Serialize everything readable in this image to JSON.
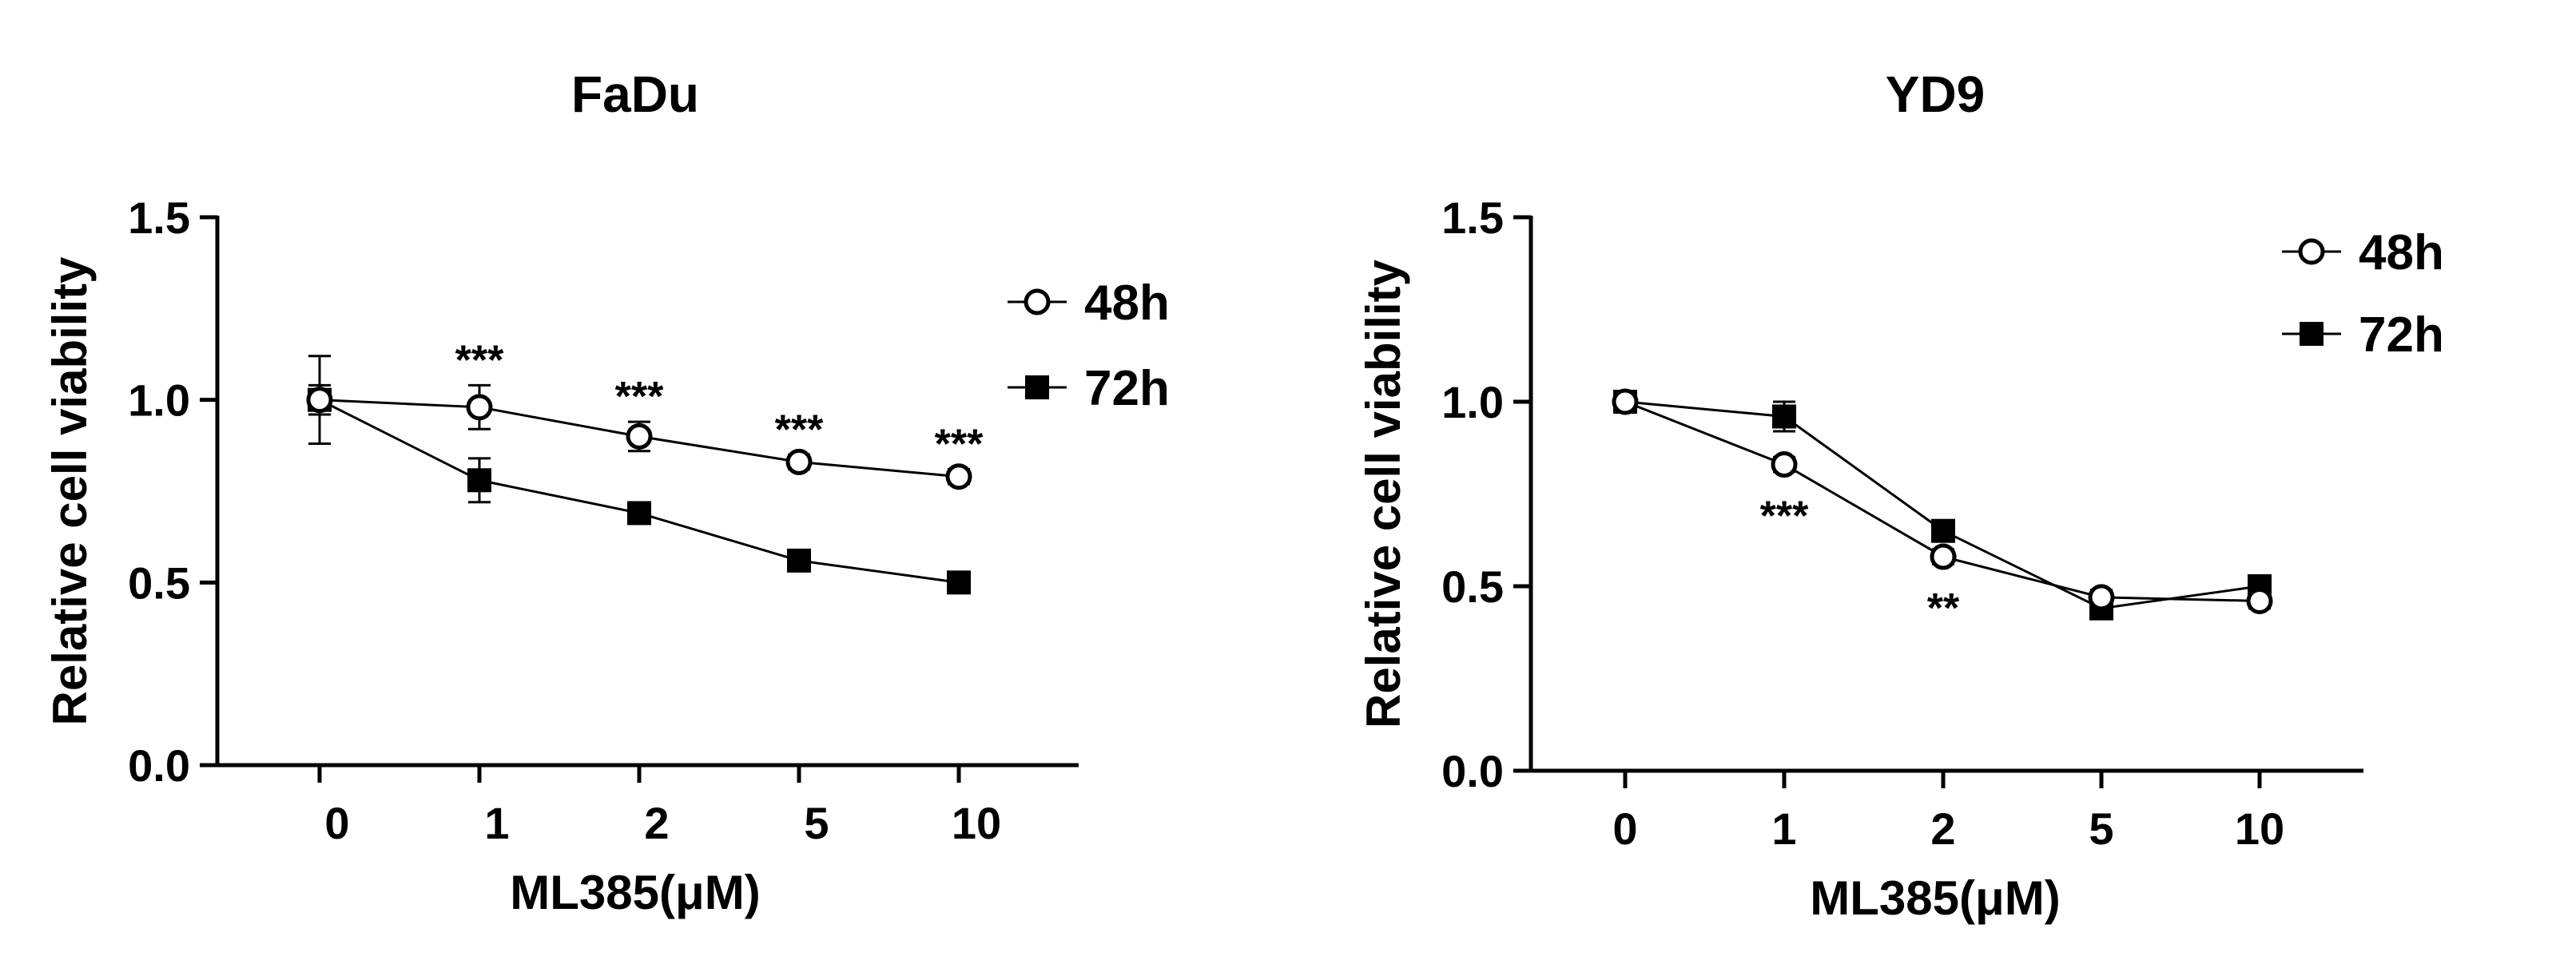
{
  "chart_data": [
    {
      "type": "line",
      "title": "FaDu",
      "xlabel": "ML385(μM)",
      "ylabel": "Relative cell viability",
      "categories": [
        "0",
        "1",
        "2",
        "5",
        "10"
      ],
      "ylim": [
        0,
        1.5
      ],
      "yticks": [
        "0.0",
        "0.5",
        "1.0",
        "1.5"
      ],
      "legend_position": "top-right",
      "series": [
        {
          "name": "48h",
          "marker": "open-circle",
          "values": [
            1.0,
            0.98,
            0.9,
            0.83,
            0.79
          ],
          "errors": [
            0.12,
            0.06,
            0.04,
            0.02,
            0.02
          ],
          "annotations": [
            "",
            "***",
            "***",
            "***",
            "***"
          ]
        },
        {
          "name": "72h",
          "marker": "filled-square",
          "values": [
            1.0,
            0.78,
            0.69,
            0.56,
            0.5
          ],
          "errors": [
            0.04,
            0.06,
            0.02,
            0.02,
            0.01
          ],
          "annotations": [
            "",
            "",
            "",
            "",
            ""
          ]
        }
      ]
    },
    {
      "type": "line",
      "title": "YD9",
      "xlabel": "ML385(μM)",
      "ylabel": "Relative cell viability",
      "categories": [
        "0",
        "1",
        "2",
        "5",
        "10"
      ],
      "ylim": [
        0,
        1.5
      ],
      "yticks": [
        "0.0",
        "0.5",
        "1.0",
        "1.5"
      ],
      "legend_position": "top-right",
      "series": [
        {
          "name": "48h",
          "marker": "open-circle",
          "values": [
            1.0,
            0.83,
            0.58,
            0.47,
            0.46
          ],
          "errors": [
            0.02,
            0.02,
            0.02,
            0.02,
            0.02
          ],
          "annotations": [
            "",
            "***",
            "**",
            "",
            ""
          ]
        },
        {
          "name": "72h",
          "marker": "filled-square",
          "values": [
            1.0,
            0.96,
            0.65,
            0.44,
            0.5
          ],
          "errors": [
            0.02,
            0.04,
            0.02,
            0.02,
            0.02
          ],
          "annotations": [
            "",
            "",
            "",
            "",
            ""
          ]
        }
      ]
    }
  ]
}
